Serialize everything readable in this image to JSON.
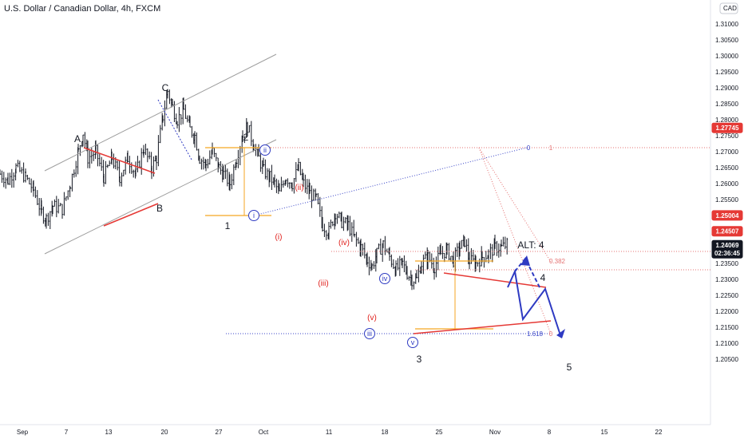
{
  "header": {
    "title": "U.S. Dollar / Canadian Dollar, 4h, FXCM",
    "currency": "CAD"
  },
  "colors": {
    "candle": "#131722",
    "red": "#e53935",
    "blue": "#2e3ac2",
    "orange": "#f5a623",
    "channel": "#9e9e9e",
    "badge_red": "#e53935",
    "badge_dark": "#131722"
  },
  "chart_data": {
    "type": "candlestick",
    "title": "U.S. Dollar / Canadian Dollar, 4h, FXCM",
    "ylim": [
      1.2,
      1.32
    ],
    "yticks": [
      "1.31000",
      "1.30500",
      "1.30000",
      "1.29500",
      "1.29000",
      "1.28500",
      "1.28000",
      "1.27500",
      "1.27000",
      "1.26500",
      "1.26000",
      "1.25500",
      "1.25000",
      "1.24500",
      "1.24000",
      "1.23500",
      "1.23000",
      "1.22500",
      "1.22000",
      "1.21500",
      "1.21000",
      "1.20500"
    ],
    "xticks": [
      "Sep",
      "7",
      "13",
      "20",
      "27",
      "Oct",
      "11",
      "18",
      "25",
      "Nov",
      "8",
      "15",
      "22"
    ],
    "price_badges": [
      {
        "label": "1.27745",
        "value": 1.27745,
        "style": "red"
      },
      {
        "label": "1.25004",
        "value": 1.25004,
        "style": "red"
      },
      {
        "label": "1.24507",
        "value": 1.24507,
        "style": "red"
      },
      {
        "label": "1.24069",
        "value": 1.24069,
        "style": "dark",
        "sub": "02:36:45"
      }
    ],
    "price_path": [
      [
        0,
        1.263
      ],
      [
        10,
        1.261
      ],
      [
        20,
        1.265
      ],
      [
        32,
        1.262
      ],
      [
        42,
        1.258
      ],
      [
        52,
        1.251
      ],
      [
        58,
        1.249
      ],
      [
        66,
        1.253
      ],
      [
        78,
        1.252
      ],
      [
        88,
        1.26
      ],
      [
        98,
        1.27
      ],
      [
        104,
        1.276
      ],
      [
        110,
        1.268
      ],
      [
        120,
        1.27
      ],
      [
        130,
        1.262
      ],
      [
        140,
        1.268
      ],
      [
        150,
        1.262
      ],
      [
        160,
        1.268
      ],
      [
        170,
        1.263
      ],
      [
        180,
        1.271
      ],
      [
        190,
        1.265
      ],
      [
        196,
        1.268
      ],
      [
        204,
        1.281
      ],
      [
        210,
        1.289
      ],
      [
        216,
        1.284
      ],
      [
        222,
        1.28
      ],
      [
        230,
        1.283
      ],
      [
        238,
        1.277
      ],
      [
        244,
        1.275
      ],
      [
        250,
        1.268
      ],
      [
        258,
        1.266
      ],
      [
        266,
        1.27
      ],
      [
        274,
        1.265
      ],
      [
        280,
        1.263
      ],
      [
        288,
        1.26
      ],
      [
        296,
        1.268
      ],
      [
        304,
        1.275
      ],
      [
        310,
        1.278
      ],
      [
        318,
        1.272
      ],
      [
        324,
        1.268
      ],
      [
        330,
        1.264
      ],
      [
        338,
        1.262
      ],
      [
        344,
        1.26
      ],
      [
        350,
        1.257
      ],
      [
        358,
        1.262
      ],
      [
        366,
        1.26
      ],
      [
        374,
        1.265
      ],
      [
        380,
        1.26
      ],
      [
        388,
        1.257
      ],
      [
        396,
        1.255
      ],
      [
        404,
        1.247
      ],
      [
        412,
        1.245
      ],
      [
        420,
        1.251
      ],
      [
        428,
        1.248
      ],
      [
        436,
        1.247
      ],
      [
        444,
        1.243
      ],
      [
        452,
        1.24
      ],
      [
        460,
        1.236
      ],
      [
        466,
        1.234
      ],
      [
        472,
        1.238
      ],
      [
        480,
        1.241
      ],
      [
        488,
        1.237
      ],
      [
        496,
        1.233
      ],
      [
        504,
        1.235
      ],
      [
        510,
        1.232
      ],
      [
        516,
        1.23
      ],
      [
        522,
        1.23
      ],
      [
        528,
        1.235
      ],
      [
        536,
        1.237
      ],
      [
        544,
        1.234
      ],
      [
        552,
        1.238
      ],
      [
        560,
        1.239
      ],
      [
        568,
        1.236
      ],
      [
        576,
        1.24
      ],
      [
        582,
        1.242
      ],
      [
        588,
        1.236
      ],
      [
        596,
        1.235
      ],
      [
        604,
        1.237
      ],
      [
        612,
        1.238
      ],
      [
        620,
        1.24
      ],
      [
        628,
        1.24
      ],
      [
        636,
        1.241
      ]
    ],
    "wave_labels": [
      {
        "text": "A",
        "style": "black"
      },
      {
        "text": "B",
        "style": "black"
      },
      {
        "text": "C",
        "style": "black"
      },
      {
        "text": "1",
        "style": "black"
      },
      {
        "text": "2",
        "style": "black"
      },
      {
        "text": "3",
        "style": "black"
      },
      {
        "text": "4",
        "style": "black"
      },
      {
        "text": "5",
        "style": "black"
      },
      {
        "text": "ALT: 4",
        "style": "black"
      },
      {
        "text": "(i)",
        "style": "red"
      },
      {
        "text": "(ii)",
        "style": "red"
      },
      {
        "text": "(iii)",
        "style": "red"
      },
      {
        "text": "(iv)",
        "style": "red"
      },
      {
        "text": "(v)",
        "style": "red"
      },
      {
        "text": "i",
        "style": "blue"
      },
      {
        "text": "ii",
        "style": "blue"
      },
      {
        "text": "iii",
        "style": "blue"
      },
      {
        "text": "iv",
        "style": "blue"
      },
      {
        "text": "v",
        "style": "blue"
      }
    ],
    "fib_labels": [
      {
        "text": "0",
        "style": "blue"
      },
      {
        "text": "1",
        "style": "red"
      },
      {
        "text": "0.382",
        "style": "red"
      },
      {
        "text": "1.618",
        "style": "blue"
      },
      {
        "text": "0",
        "style": "red"
      }
    ]
  }
}
